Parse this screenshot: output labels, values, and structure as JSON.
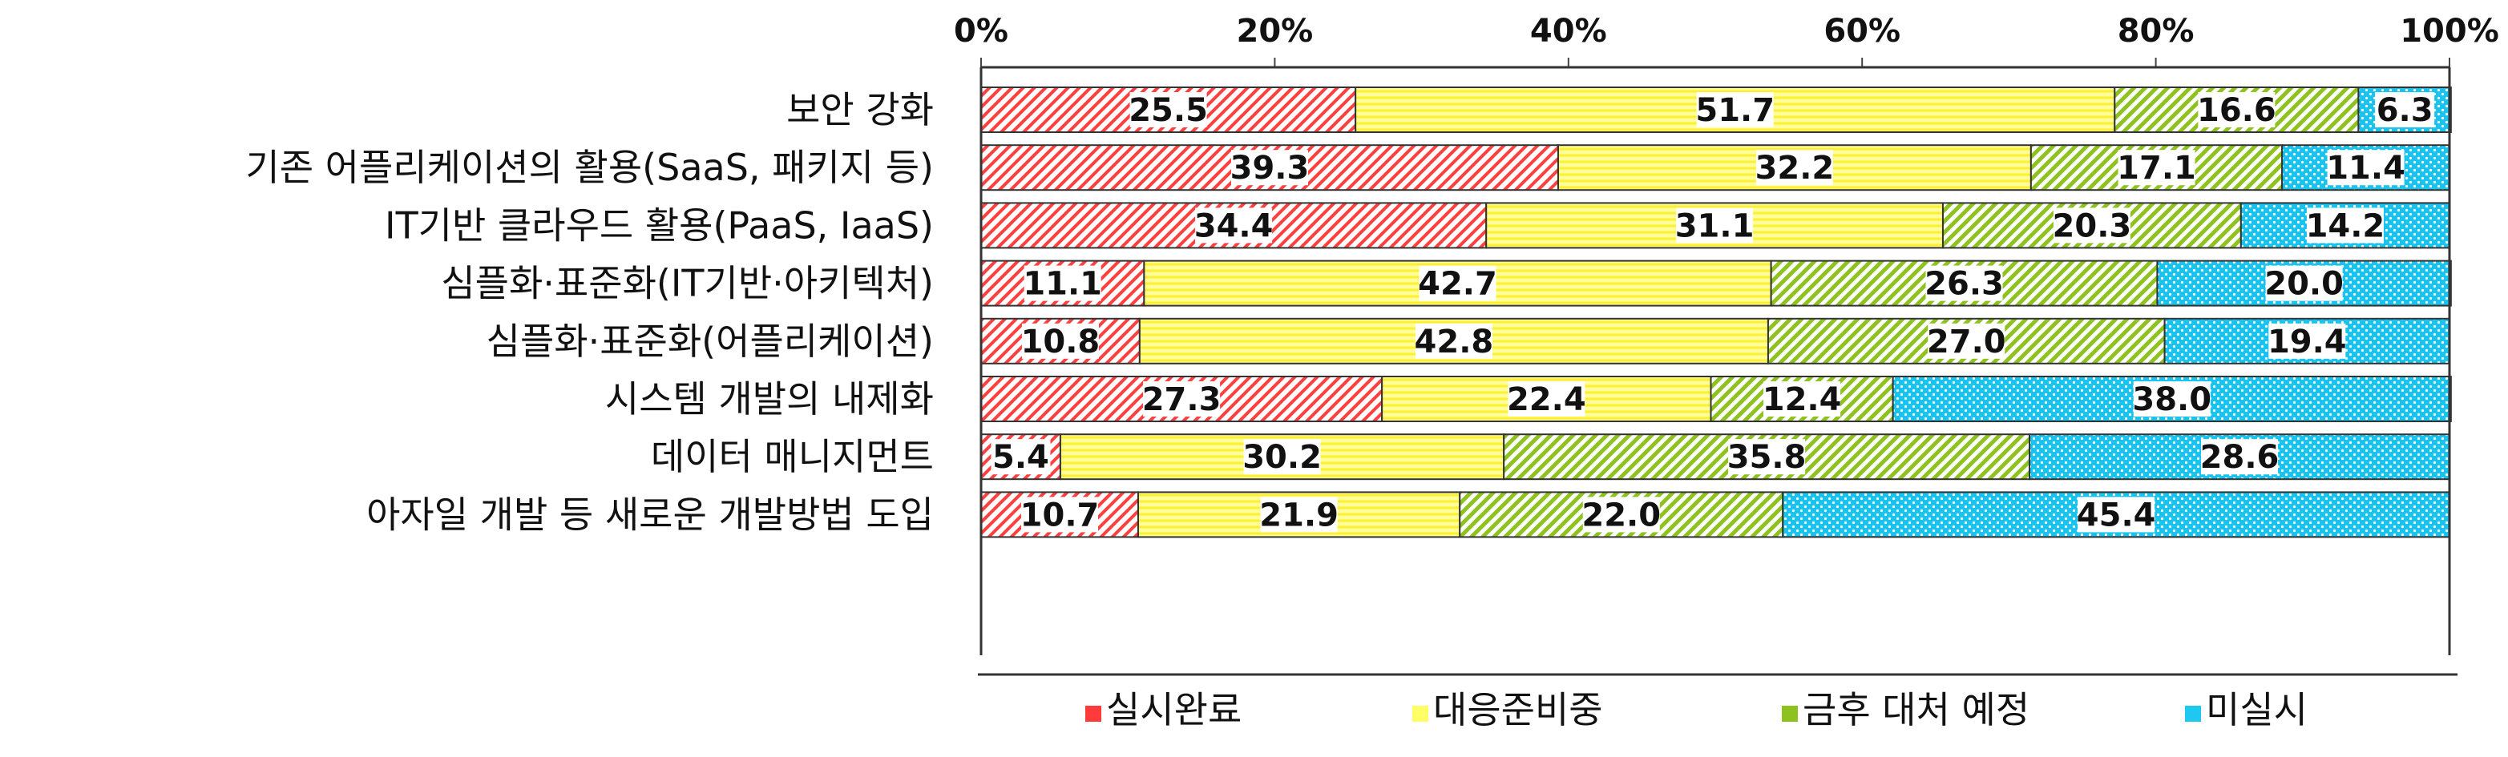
{
  "chart_data": {
    "type": "bar",
    "orientation": "horizontal",
    "stacked": true,
    "categories": [
      "보안 강화",
      "기존 어플리케이션의 활용(SaaS, 패키지 등)",
      "IT기반 클라우드 활용(PaaS, IaaS)",
      "심플화·표준화(IT기반·아키텍처)",
      "심플화·표준화(어플리케이션)",
      "시스템 개발의 내제화",
      "데이터 매니지먼트",
      "아자일 개발 등 새로운 개발방법 도입"
    ],
    "series": [
      {
        "name": "실시완료",
        "color": "#ff3b3b",
        "pattern": "diagonal-red",
        "values": [
          25.5,
          39.3,
          34.4,
          11.1,
          10.8,
          27.3,
          5.4,
          10.7
        ]
      },
      {
        "name": "대응준비중",
        "color": "#ffff66",
        "pattern": "horizontal-yellow",
        "values": [
          51.7,
          32.2,
          31.1,
          42.7,
          42.8,
          22.4,
          30.2,
          21.9
        ]
      },
      {
        "name": "금후 대처 예정",
        "color": "#8dc21f",
        "pattern": "diagonal-green",
        "values": [
          16.6,
          17.1,
          20.3,
          26.3,
          27.0,
          12.4,
          35.8,
          22.0
        ]
      },
      {
        "name": "미실시",
        "color": "#1ec8f0",
        "pattern": "dots-cyan",
        "values": [
          6.3,
          11.4,
          14.2,
          20.0,
          19.4,
          38.0,
          28.6,
          45.4
        ]
      }
    ],
    "xaxis": {
      "ticks": [
        "0%",
        "20%",
        "40%",
        "60%",
        "80%",
        "100%"
      ],
      "range": [
        0,
        100
      ],
      "position": "top"
    },
    "legend_position": "bottom",
    "grid": false
  }
}
